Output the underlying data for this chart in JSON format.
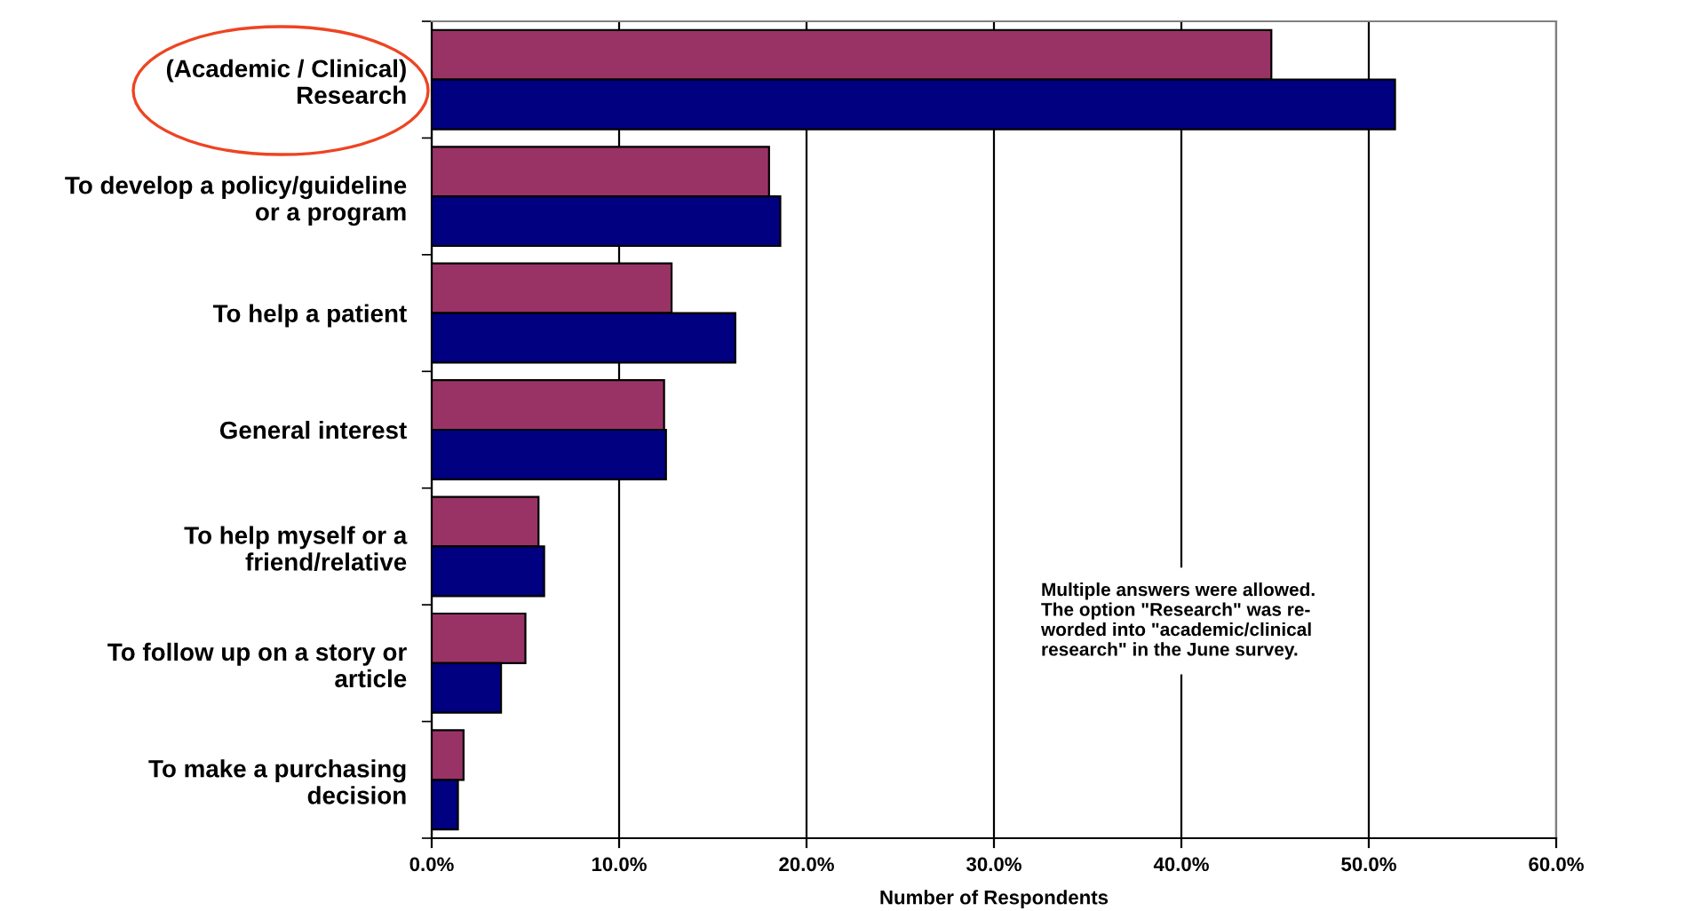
{
  "chart_data": {
    "type": "bar",
    "orientation": "horizontal",
    "xlabel": "Number of Respondents",
    "categories": [
      "(Academic / Clinical)\nResearch",
      "To develop a policy/guideline\nor a program",
      "To help a patient",
      "General interest",
      "To help myself or a\nfriend/relative",
      "To follow up on a story or\narticle",
      "To make a purchasing\ndecision"
    ],
    "series": [
      {
        "color": "#993366",
        "values": [
          44.8,
          18.0,
          12.8,
          12.4,
          5.7,
          5.0,
          1.7
        ]
      },
      {
        "color": "#000080",
        "values": [
          51.4,
          18.6,
          16.2,
          12.5,
          6.0,
          3.7,
          1.4
        ]
      }
    ],
    "xlim": [
      0,
      60
    ],
    "xticks": [
      {
        "value": 0,
        "label": "0.0%"
      },
      {
        "value": 10,
        "label": "10.0%"
      },
      {
        "value": 20,
        "label": "20.0%"
      },
      {
        "value": 30,
        "label": "30.0%"
      },
      {
        "value": 40,
        "label": "40.0%"
      },
      {
        "value": 50,
        "label": "50.0%"
      },
      {
        "value": 60,
        "label": "60.0%"
      }
    ],
    "grid": "x",
    "legend": false,
    "annotations": [
      "Multiple answers were allowed.\nThe option \"Research\" was re-\nworded into \"academic/clinical\nresearch\" in the June survey."
    ]
  }
}
